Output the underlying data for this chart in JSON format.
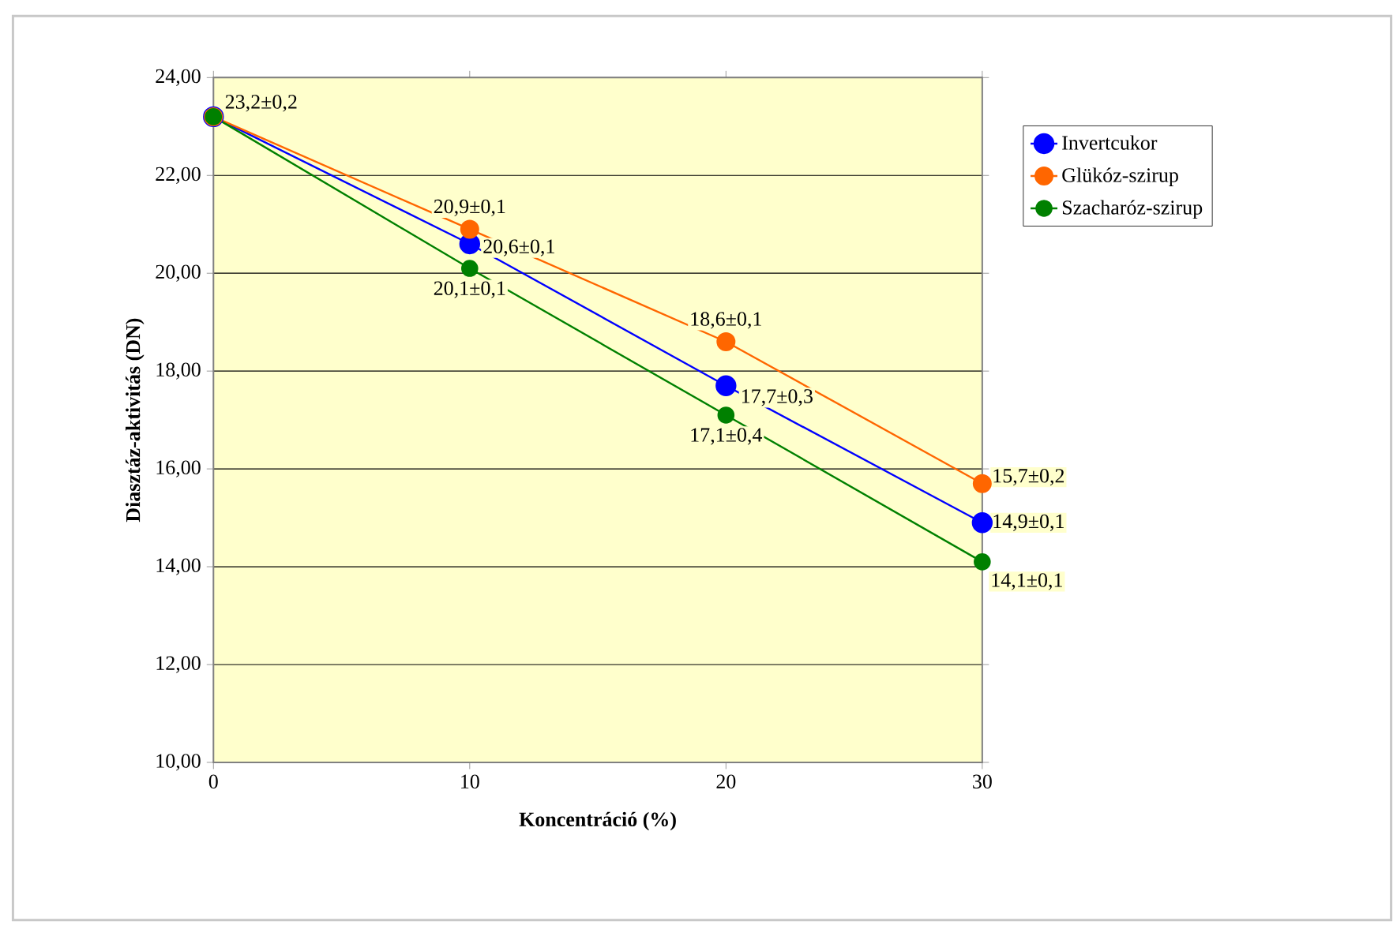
{
  "chart_data": {
    "type": "line",
    "xlabel": "Koncentráció (%)",
    "ylabel": "Diasztáz-aktivitás (DN)",
    "x": [
      0,
      10,
      20,
      30
    ],
    "series": [
      {
        "name": "Invertcukor",
        "color": "#0000ff",
        "values": [
          23.2,
          20.6,
          17.7,
          14.9
        ],
        "value_labels": [
          "23,2±0,2",
          "20,6±0,1",
          "17,7±0,3",
          "14,9±0,1"
        ]
      },
      {
        "name": "Glükóz-szirup",
        "color": "#ff6600",
        "values": [
          23.2,
          20.9,
          18.6,
          15.7
        ],
        "value_labels": [
          null,
          "20,9±0,1",
          "18,6±0,1",
          "15,7±0,2"
        ]
      },
      {
        "name": "Szacharóz-szirup",
        "color": "#008000",
        "values": [
          23.2,
          20.1,
          17.1,
          14.1
        ],
        "value_labels": [
          null,
          "20,1±0,1",
          "17,1±0,4",
          "14,1±0,1"
        ]
      }
    ],
    "xlim": [
      0,
      30
    ],
    "xticks": [
      0,
      10,
      20,
      30
    ],
    "ylim": [
      10,
      24
    ],
    "yticks": [
      {
        "value": 10,
        "label": "10,00"
      },
      {
        "value": 12,
        "label": "12,00"
      },
      {
        "value": 14,
        "label": "14,00"
      },
      {
        "value": 16,
        "label": "16,00"
      },
      {
        "value": 18,
        "label": "18,00"
      },
      {
        "value": 20,
        "label": "20,00"
      },
      {
        "value": 22,
        "label": "22,00"
      },
      {
        "value": 24,
        "label": "24,00"
      }
    ],
    "grid": "y",
    "legend": "right",
    "marker": "circle",
    "line_style": "solid"
  }
}
